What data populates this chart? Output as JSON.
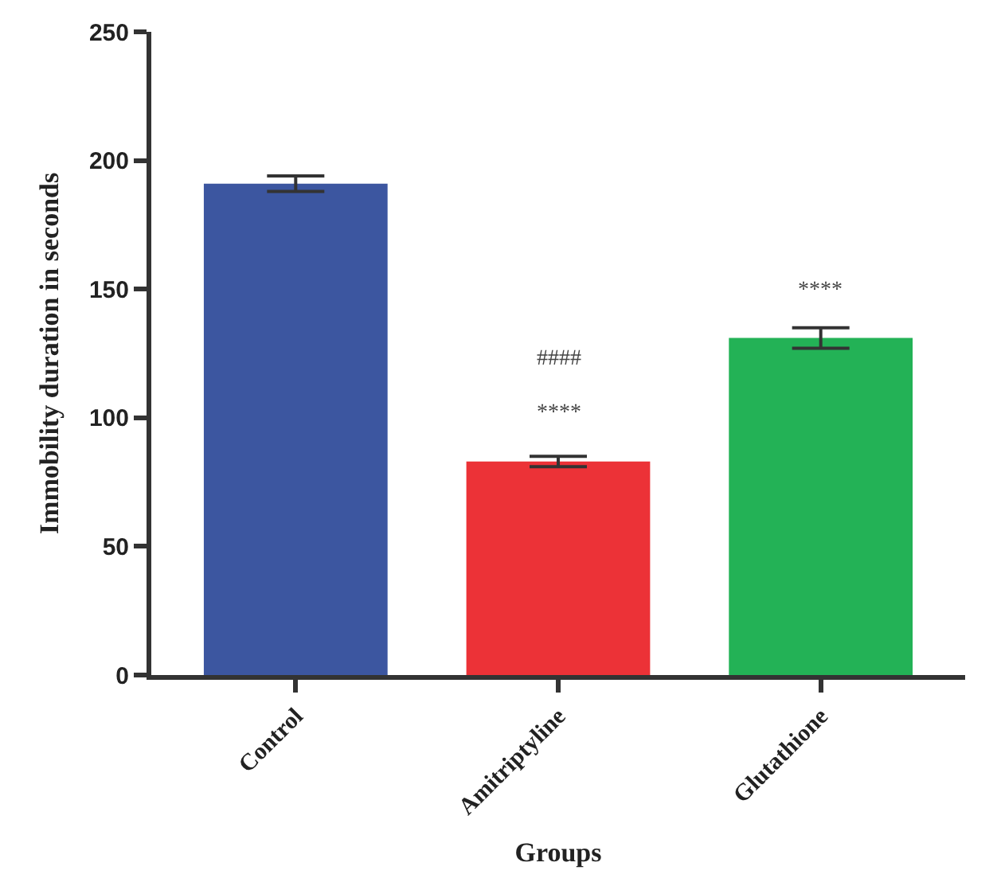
{
  "chart_data": {
    "type": "bar",
    "xlabel": "Groups",
    "ylabel": "Immobility duration in seconds",
    "categories": [
      "Control",
      "Amitriptyline",
      "Glutathione"
    ],
    "values": [
      191,
      83,
      131
    ],
    "errors": [
      3,
      2,
      4
    ],
    "colors": [
      "#3c56a0",
      "#ec3237",
      "#23b256"
    ],
    "ylim": [
      0,
      250
    ],
    "yticks": [
      0,
      50,
      100,
      150,
      200,
      250
    ],
    "legend": false,
    "annotations": [
      {
        "text": "****",
        "x": "Amitriptyline",
        "y": 83
      },
      "####",
      {
        "text": "****",
        "x": "Glutathione",
        "y": 131
      }
    ]
  }
}
